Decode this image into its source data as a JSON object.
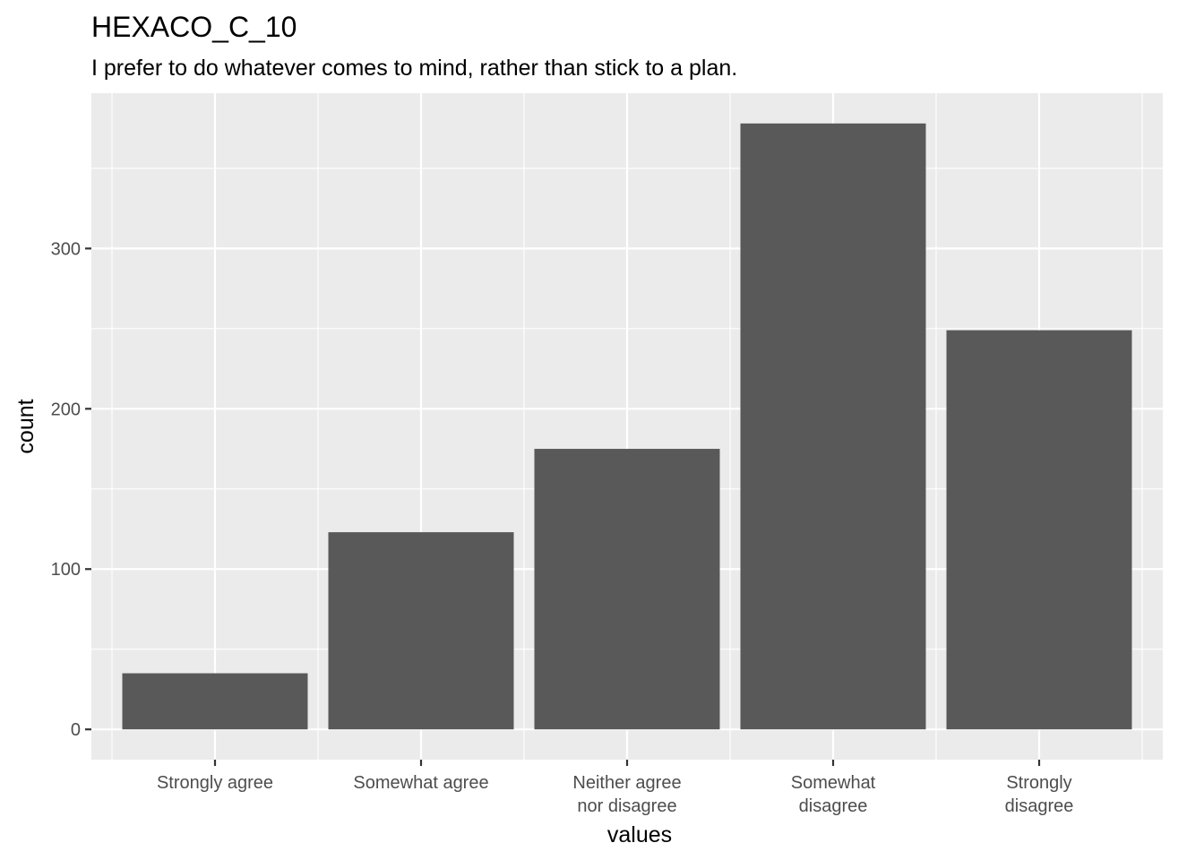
{
  "chart_data": {
    "type": "bar",
    "title": "HEXACO_C_10",
    "subtitle": "I prefer to do whatever comes to mind, rather than stick to a plan.",
    "xlabel": "values",
    "ylabel": "count",
    "categories": [
      [
        "Strongly agree"
      ],
      [
        "Somewhat agree"
      ],
      [
        "Neither agree",
        "nor disagree"
      ],
      [
        "Somewhat",
        "disagree"
      ],
      [
        "Strongly",
        "disagree"
      ]
    ],
    "values": [
      35,
      123,
      175,
      378,
      249
    ],
    "yticks": [
      0,
      100,
      200,
      300
    ],
    "ylim": [
      -18.9,
      396.9
    ],
    "grid": true,
    "colors": {
      "panel": "#ebebeb",
      "grid": "#ffffff",
      "bar": "#595959",
      "tick_text": "#4d4d4d",
      "tick_mark": "#333333"
    }
  }
}
